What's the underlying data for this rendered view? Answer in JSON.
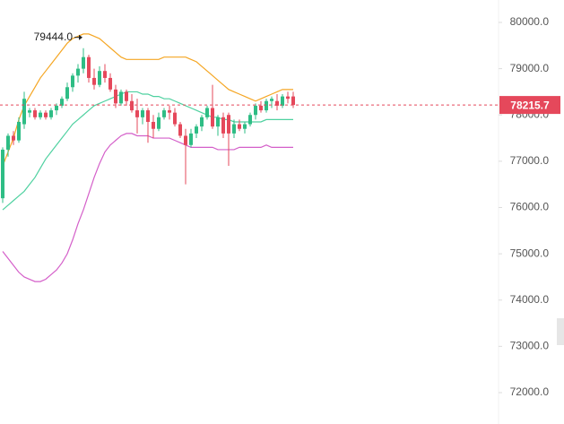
{
  "chart_data": {
    "type": "candlestick",
    "ylim": [
      71322,
      80484
    ],
    "yticks": [
      {
        "value": 72000,
        "label": "72000.0"
      },
      {
        "value": 73000,
        "label": "73000.0"
      },
      {
        "value": 74000,
        "label": "74000.0"
      },
      {
        "value": 75000,
        "label": "75000.0"
      },
      {
        "value": 76000,
        "label": "76000.0"
      },
      {
        "value": 77000,
        "label": "77000.0"
      },
      {
        "value": 78000,
        "label": "78000.0"
      },
      {
        "value": 79000,
        "label": "79000.0"
      },
      {
        "value": 80000,
        "label": "80000.0"
      }
    ],
    "up_color": "#2ebd85",
    "down_color": "#e5485b",
    "open": [
      76200,
      77250,
      77550,
      77450,
      77800,
      78050,
      78100,
      77950,
      78050,
      77950,
      78100,
      78200,
      78350,
      78600,
      78850,
      79000,
      79250,
      78800,
      78650,
      78950,
      78800,
      78550,
      78250,
      78500,
      78300,
      78100,
      77950,
      78100,
      77850,
      77700,
      77950,
      78100,
      78050,
      77800,
      77550,
      77350,
      77600,
      77750,
      77950,
      78150,
      77750,
      77950,
      78000,
      77600,
      77800,
      77700,
      77800,
      78000,
      78200,
      78100,
      78300,
      78300,
      78200,
      78400,
      78400
    ],
    "high": [
      77300,
      77600,
      77650,
      77950,
      78500,
      78150,
      78150,
      78100,
      78100,
      78150,
      78250,
      78400,
      78700,
      78900,
      79100,
      79444,
      79300,
      79000,
      79050,
      79100,
      78900,
      78650,
      78550,
      78550,
      78450,
      78350,
      78150,
      78150,
      78000,
      78050,
      78150,
      78200,
      78150,
      77850,
      77700,
      77700,
      77800,
      78000,
      78200,
      78650,
      78000,
      78050,
      78050,
      77900,
      77900,
      77850,
      78050,
      78250,
      78300,
      78350,
      78400,
      78450,
      78450,
      78500,
      78500
    ],
    "low": [
      76100,
      77100,
      77350,
      77400,
      77700,
      77950,
      77900,
      77900,
      77900,
      77900,
      78000,
      78150,
      78300,
      78500,
      78700,
      78900,
      78700,
      78550,
      78600,
      78700,
      78500,
      78150,
      78200,
      78200,
      78050,
      77600,
      77800,
      77400,
      77500,
      77650,
      77900,
      77900,
      77750,
      77500,
      76500,
      77300,
      77500,
      77650,
      77900,
      77700,
      77550,
      77500,
      76900,
      77500,
      77650,
      77600,
      77750,
      77900,
      78050,
      78050,
      78150,
      78100,
      78150,
      78250,
      78150
    ],
    "close": [
      77250,
      77550,
      77450,
      77850,
      78350,
      78100,
      77950,
      78050,
      77950,
      78100,
      78200,
      78350,
      78600,
      78850,
      79000,
      79250,
      78800,
      78650,
      78950,
      78800,
      78550,
      78250,
      78500,
      78300,
      78100,
      77950,
      78100,
      77850,
      77700,
      77950,
      78100,
      78050,
      77800,
      77550,
      77350,
      77600,
      77750,
      77950,
      78150,
      77750,
      77950,
      77600,
      77600,
      77800,
      77700,
      77800,
      78000,
      78200,
      78100,
      78300,
      78350,
      78200,
      78400,
      78350,
      78215.7
    ],
    "series": [
      {
        "color": "#f5a623",
        "values": [
          76900,
          77200,
          77500,
          77900,
          78200,
          78400,
          78600,
          78800,
          78950,
          79100,
          79250,
          79400,
          79550,
          79650,
          79700,
          79750,
          79750,
          79700,
          79650,
          79550,
          79450,
          79350,
          79250,
          79200,
          79200,
          79200,
          79200,
          79200,
          79200,
          79200,
          79250,
          79250,
          79250,
          79250,
          79250,
          79200,
          79150,
          79050,
          78950,
          78850,
          78750,
          78650,
          78550,
          78500,
          78450,
          78400,
          78350,
          78300,
          78350,
          78400,
          78450,
          78500,
          78550,
          78550,
          78550
        ]
      },
      {
        "color": "#4fd1a0",
        "values": [
          75950,
          76050,
          76150,
          76250,
          76350,
          76500,
          76650,
          76850,
          77050,
          77200,
          77350,
          77500,
          77650,
          77800,
          77900,
          78000,
          78100,
          78200,
          78250,
          78300,
          78350,
          78400,
          78450,
          78500,
          78500,
          78500,
          78450,
          78450,
          78400,
          78400,
          78350,
          78350,
          78300,
          78250,
          78200,
          78150,
          78100,
          78050,
          78000,
          77950,
          77950,
          77900,
          77900,
          77850,
          77850,
          77850,
          77850,
          77850,
          77850,
          77900,
          77900,
          77900,
          77900,
          77900,
          77900
        ]
      },
      {
        "color": "#d45fc9",
        "values": [
          75050,
          74900,
          74750,
          74600,
          74500,
          74450,
          74400,
          74400,
          74450,
          74550,
          74650,
          74800,
          75000,
          75300,
          75650,
          75950,
          76300,
          76650,
          76950,
          77200,
          77350,
          77450,
          77550,
          77600,
          77600,
          77550,
          77550,
          77550,
          77500,
          77500,
          77500,
          77500,
          77450,
          77400,
          77350,
          77300,
          77300,
          77300,
          77300,
          77300,
          77250,
          77250,
          77250,
          77250,
          77300,
          77300,
          77300,
          77300,
          77300,
          77350,
          77300,
          77300,
          77300,
          77300,
          77300
        ]
      }
    ],
    "annotation": {
      "value": 79444,
      "label": "79444.0"
    },
    "price_line": {
      "value": 78215.7,
      "label": "78215.7"
    }
  }
}
